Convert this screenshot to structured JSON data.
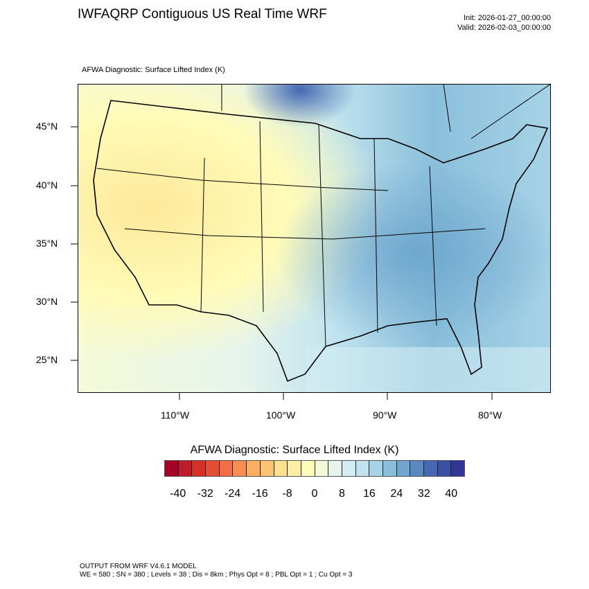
{
  "header": {
    "title": "IWFAQRP Contiguous US Real Time WRF",
    "init": "Init: 2026-01-27_00:00:00",
    "valid": "Valid: 2026-02-03_00:00:00",
    "subtitle": "AFWA Diagnostic: Surface Lifted Index   (K)"
  },
  "map": {
    "lat_labels": [
      "45°N",
      "40°N",
      "35°N",
      "30°N",
      "25°N"
    ],
    "lon_labels": [
      "110°W",
      "100°W",
      "90°W",
      "80°W"
    ],
    "field_colors": {
      "west": "#fee99a",
      "central": "#e6f4ec",
      "east": "#8abfdb",
      "ocean": "#d4ecf4"
    }
  },
  "colorbar": {
    "title": "AFWA Diagnostic: Surface Lifted Index  (K)",
    "labels": [
      "-40",
      "-32",
      "-24",
      "-16",
      "-8",
      "0",
      "8",
      "16",
      "24",
      "32",
      "40"
    ],
    "levels": [
      -40,
      -36,
      -32,
      -28,
      -24,
      -20,
      -16,
      -12,
      -8,
      -4,
      0,
      4,
      8,
      12,
      16,
      20,
      24,
      28,
      32,
      36,
      40
    ],
    "colors": [
      "#a50026",
      "#be1b2b",
      "#d73027",
      "#e34e37",
      "#f46d43",
      "#f98e52",
      "#fdae61",
      "#fdc474",
      "#fee090",
      "#feeda5",
      "#fffbb9",
      "#f4fad8",
      "#e6f4ec",
      "#d4ecf4",
      "#bfe2ee",
      "#a6d3e6",
      "#8abfdb",
      "#6fa7cf",
      "#5889c0",
      "#4469b2",
      "#3a50a2",
      "#313695"
    ]
  },
  "footer": {
    "line1": "OUTPUT FROM WRF V4.6.1 MODEL",
    "line2": "WE = 580 ; SN = 380 ; Levels = 38 ; Dis = 8km ; Phys Opt = 8 ; PBL Opt = 1 ; Cu Opt = 3"
  }
}
